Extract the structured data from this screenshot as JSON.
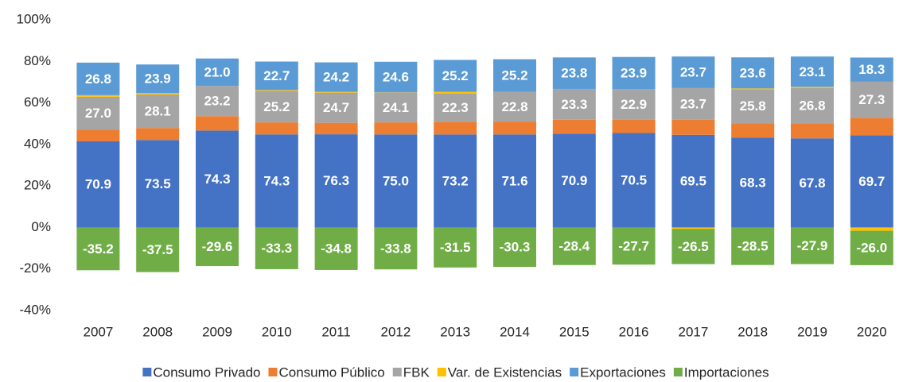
{
  "chart_data": {
    "type": "stacked_percent",
    "categories": [
      "2007",
      "2008",
      "2009",
      "2010",
      "2011",
      "2012",
      "2013",
      "2014",
      "2015",
      "2016",
      "2017",
      "2018",
      "2019",
      "2020"
    ],
    "series": [
      {
        "name": "Consumo Privado",
        "color": "#4472c4",
        "values": [
          70.9,
          73.5,
          74.3,
          74.3,
          76.3,
          75.0,
          73.2,
          71.6,
          70.9,
          70.5,
          69.5,
          68.3,
          67.8,
          69.7
        ],
        "value_labels": [
          "70.9",
          "73.5",
          "74.3",
          "74.3",
          "76.3",
          "75.0",
          "73.2",
          "71.6",
          "70.9",
          "70.5",
          "69.5",
          "68.3",
          "67.8",
          "69.7"
        ]
      },
      {
        "name": "Consumo Público",
        "color": "#ed7d31",
        "values": [
          9.7,
          10.1,
          11.0,
          9.6,
          9.4,
          9.7,
          10.0,
          9.9,
          10.5,
          10.0,
          11.4,
          10.9,
          11.5,
          13.2
        ]
      },
      {
        "name": "FBK",
        "color": "#a5a5a5",
        "values": [
          27.0,
          28.1,
          23.2,
          25.2,
          24.7,
          24.1,
          22.3,
          22.8,
          23.3,
          22.9,
          23.7,
          25.8,
          26.8,
          27.3
        ],
        "value_labels": [
          "27.0",
          "28.1",
          "23.2",
          "25.2",
          "24.7",
          "24.1",
          "22.3",
          "22.8",
          "23.3",
          "22.9",
          "23.7",
          "25.8",
          "26.8",
          "27.3"
        ]
      },
      {
        "name": "Var. de Existencias",
        "color": "#ffc000",
        "values": [
          1.3,
          1.4,
          0.0,
          0.7,
          0.6,
          0.2,
          1.2,
          0.0,
          0.0,
          0.0,
          -1.0,
          0.6,
          0.9,
          -2.5
        ]
      },
      {
        "name": "Exportaciones",
        "color": "#5b9bd5",
        "values": [
          26.8,
          23.9,
          21.0,
          22.7,
          24.2,
          24.6,
          25.2,
          25.2,
          23.8,
          23.9,
          23.7,
          23.6,
          23.1,
          18.3
        ],
        "value_labels": [
          "26.8",
          "23.9",
          "21.0",
          "22.7",
          "24.2",
          "24.6",
          "25.2",
          "25.2",
          "23.8",
          "23.9",
          "23.7",
          "23.6",
          "23.1",
          "18.3"
        ]
      },
      {
        "name": "Importaciones",
        "color": "#70ad47",
        "values": [
          -35.2,
          -37.5,
          -29.6,
          -33.3,
          -34.8,
          -33.8,
          -31.5,
          -30.3,
          -28.4,
          -27.7,
          -26.5,
          -28.5,
          -27.9,
          -26.0
        ],
        "value_labels": [
          "-35.2",
          "-37.5",
          "-29.6",
          "-33.3",
          "-34.8",
          "-33.8",
          "-31.5",
          "-30.3",
          "-28.4",
          "-27.7",
          "-26.5",
          "-28.5",
          "-27.9",
          "-26.0"
        ]
      }
    ],
    "ylim": [
      -40,
      100
    ],
    "yticks": [
      {
        "value": -40,
        "label": "-40%"
      },
      {
        "value": -20,
        "label": "-20%"
      },
      {
        "value": 0,
        "label": "0%"
      },
      {
        "value": 20,
        "label": "20%"
      },
      {
        "value": 40,
        "label": "40%"
      },
      {
        "value": 60,
        "label": "60%"
      },
      {
        "value": 80,
        "label": "80%"
      },
      {
        "value": 100,
        "label": "100%"
      }
    ],
    "grid": false,
    "legend": "bottom"
  }
}
